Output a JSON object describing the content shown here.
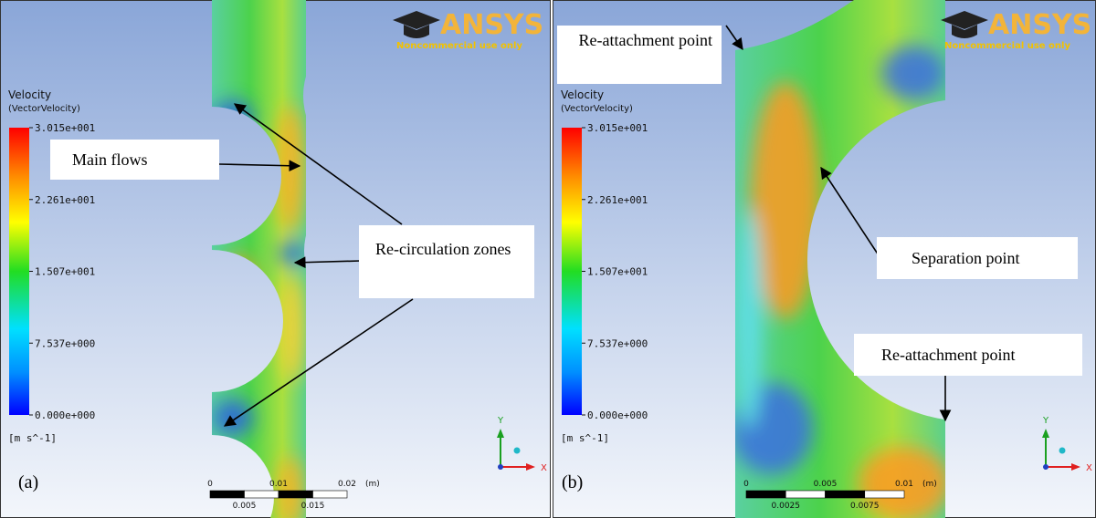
{
  "panels": [
    {
      "label": "(a)",
      "legend": {
        "title": "Velocity",
        "variable": "(VectorVelocity)",
        "ticks": [
          "3.015e+001",
          "2.261e+001",
          "1.507e+001",
          "7.537e+000",
          "0.000e+000"
        ],
        "unit": "[m s^-1]"
      },
      "logo": {
        "name": "ANSYS",
        "note": "Noncommercial use only"
      },
      "annotations": [
        "Main flows",
        "Re-circulation zones"
      ],
      "scale": {
        "top": [
          "0",
          "0.01",
          "0.02"
        ],
        "unit": "(m)",
        "bottom": [
          "0.005",
          "0.015"
        ]
      },
      "axes": [
        "Y",
        "X"
      ]
    },
    {
      "label": "(b)",
      "legend": {
        "title": "Velocity",
        "variable": "(VectorVelocity)",
        "ticks": [
          "3.015e+001",
          "2.261e+001",
          "1.507e+001",
          "7.537e+000",
          "0.000e+000"
        ],
        "unit": "[m s^-1]"
      },
      "logo": {
        "name": "ANSYS",
        "note": "Noncommercial use only"
      },
      "annotations": [
        "Re-attachment point",
        "Separation point",
        "Re-attachment point"
      ],
      "scale": {
        "top": [
          "0",
          "0.005",
          "0.01"
        ],
        "unit": "(m)",
        "bottom": [
          "0.0025",
          "0.0075"
        ]
      },
      "axes": [
        "Y",
        "X"
      ]
    }
  ]
}
